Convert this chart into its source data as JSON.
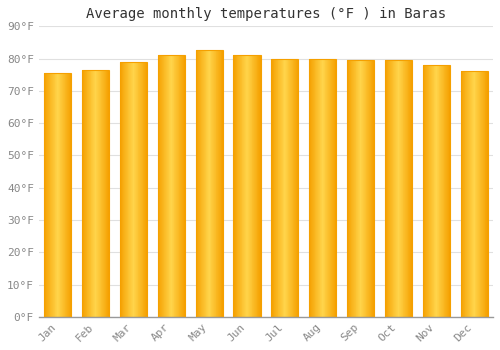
{
  "title": "Average monthly temperatures (°F ) in Baras",
  "months": [
    "Jan",
    "Feb",
    "Mar",
    "Apr",
    "May",
    "Jun",
    "Jul",
    "Aug",
    "Sep",
    "Oct",
    "Nov",
    "Dec"
  ],
  "values": [
    75.5,
    76.5,
    79.0,
    81.0,
    82.5,
    81.0,
    80.0,
    80.0,
    79.5,
    79.5,
    78.0,
    76.0
  ],
  "ylim": [
    0,
    90
  ],
  "yticks": [
    0,
    10,
    20,
    30,
    40,
    50,
    60,
    70,
    80,
    90
  ],
  "ytick_labels": [
    "0°F",
    "10°F",
    "20°F",
    "30°F",
    "40°F",
    "50°F",
    "60°F",
    "70°F",
    "80°F",
    "90°F"
  ],
  "bar_color_edge": "#F5A000",
  "bar_color_center": "#FFD44A",
  "background_color": "#FFFFFF",
  "grid_color": "#E0E0E0",
  "title_fontsize": 10,
  "tick_fontsize": 8,
  "font_family": "monospace"
}
